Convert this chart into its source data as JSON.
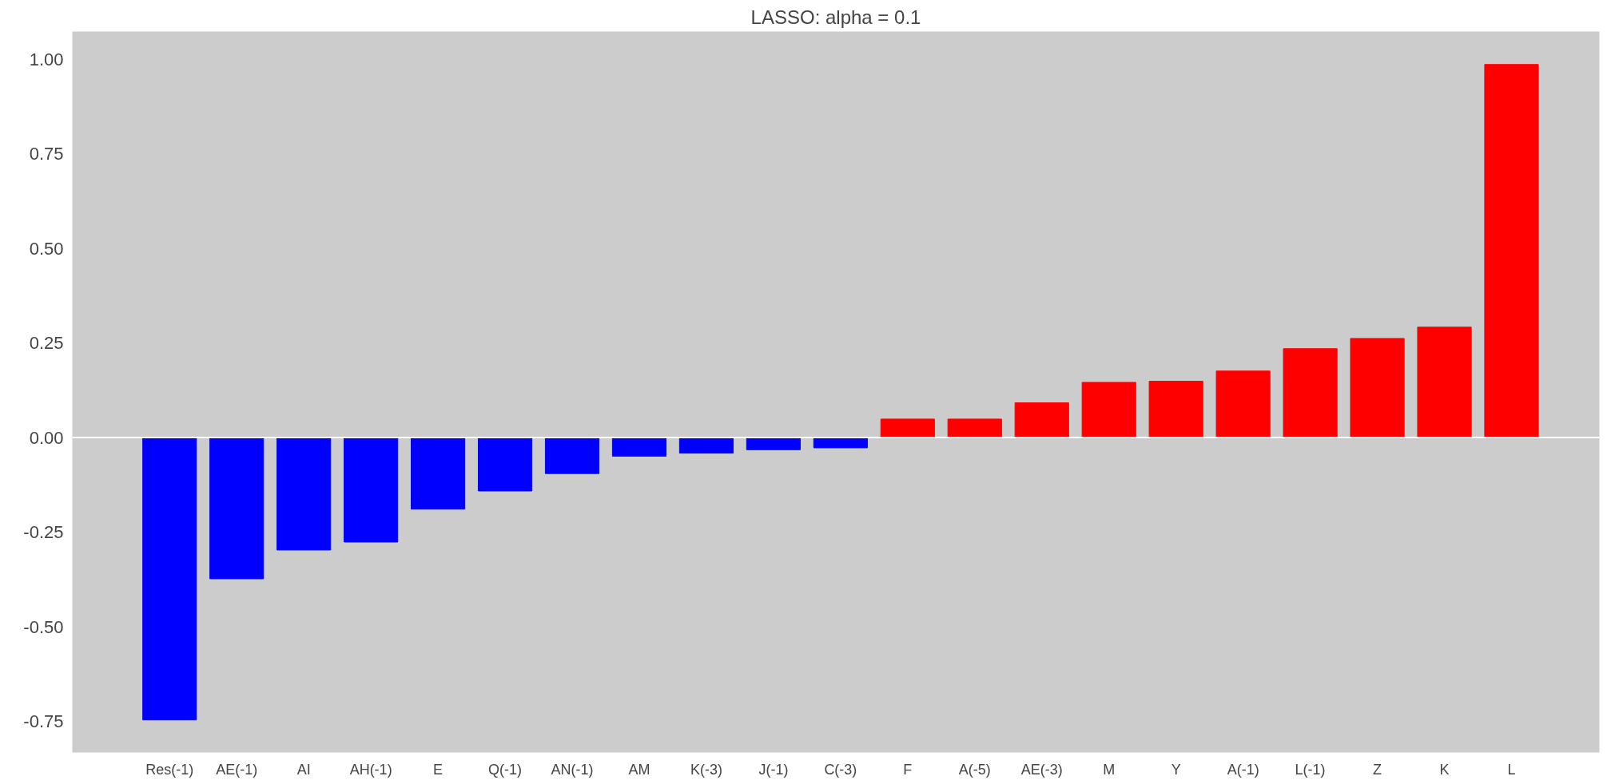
{
  "chart_data": {
    "type": "bar",
    "title": "LASSO: alpha = 0.1",
    "categories": [
      "Res(-1)",
      "AE(-1)",
      "AI",
      "AH(-1)",
      "E",
      "Q(-1)",
      "AN(-1)",
      "AM",
      "K(-3)",
      "J(-1)",
      "C(-3)",
      "F",
      "A(-5)",
      "AE(-3)",
      "M",
      "Y",
      "A(-1)",
      "L(-1)",
      "Z",
      "K",
      "L"
    ],
    "values": [
      -0.746,
      -0.373,
      -0.297,
      -0.276,
      -0.189,
      -0.141,
      -0.095,
      -0.049,
      -0.041,
      -0.032,
      -0.027,
      0.049,
      0.049,
      0.092,
      0.146,
      0.149,
      0.176,
      0.235,
      0.262,
      0.292,
      0.986
    ],
    "colors": [
      "#0000ff",
      "#0000ff",
      "#0000ff",
      "#0000ff",
      "#0000ff",
      "#0000ff",
      "#0000ff",
      "#0000ff",
      "#0000ff",
      "#0000ff",
      "#0000ff",
      "#ff0000",
      "#ff0000",
      "#ff0000",
      "#ff0000",
      "#ff0000",
      "#ff0000",
      "#ff0000",
      "#ff0000",
      "#ff0000",
      "#ff0000"
    ],
    "ylim": [
      -0.832,
      1.073
    ],
    "yticks": [
      {
        "value": -0.75,
        "label": "-0.75"
      },
      {
        "value": -0.5,
        "label": "-0.50"
      },
      {
        "value": -0.25,
        "label": "-0.25"
      },
      {
        "value": 0,
        "label": "0.00"
      },
      {
        "value": 0.25,
        "label": "0.25"
      },
      {
        "value": 0.5,
        "label": "0.50"
      },
      {
        "value": 0.75,
        "label": "0.75"
      },
      {
        "value": 1.0,
        "label": "1.00"
      }
    ],
    "ref_lines": [
      {
        "axis": "y",
        "value": 0,
        "label": null,
        "color": "#ffffff"
      }
    ],
    "grid": false
  }
}
